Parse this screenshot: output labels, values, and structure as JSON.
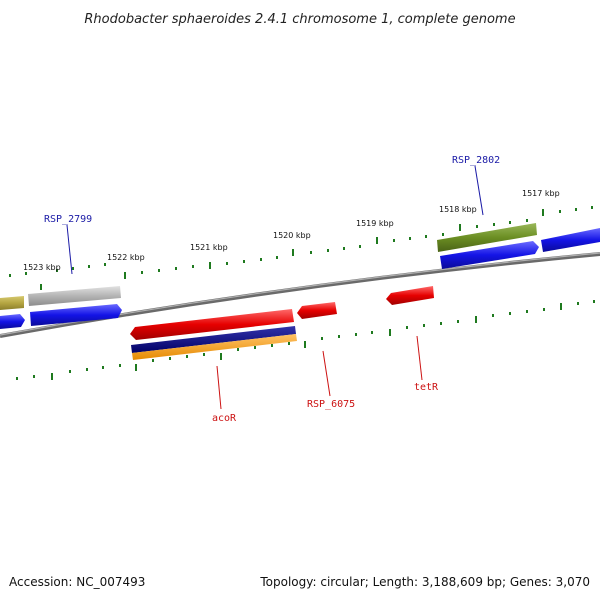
{
  "title": "Rhodobacter sphaeroides 2.4.1 chromosome 1, complete genome",
  "footer": {
    "accession": "Accession: NC_007493",
    "summary": "Topology: circular; Length: 3,188,609 bp; Genes: 3,070"
  },
  "scale_labels": [
    "1523 kbp",
    "1522 kbp",
    "1521 kbp",
    "1520 kbp",
    "1519 kbp",
    "1518 kbp",
    "1517 kbp"
  ],
  "gene_labels": [
    {
      "text": "RSP_2799",
      "color": "#1a1aa6"
    },
    {
      "text": "RSP_2802",
      "color": "#1a1aa6"
    },
    {
      "text": "acoR",
      "color": "#cc1111"
    },
    {
      "text": "RSP_6075",
      "color": "#cc1111"
    },
    {
      "text": "tetR",
      "color": "#cc1111"
    }
  ],
  "colors": {
    "backbone": "#7a7a7a",
    "tick": "#1f7a1f",
    "forward_gene": "#1414e6",
    "reverse_gene": "#e60000",
    "olive_gene": "#6b8e23",
    "gray_gene": "#b4b4b4",
    "khaki_gene": "#b5a642",
    "navy_gene": "#000080",
    "orange_gene": "#ff9900"
  }
}
